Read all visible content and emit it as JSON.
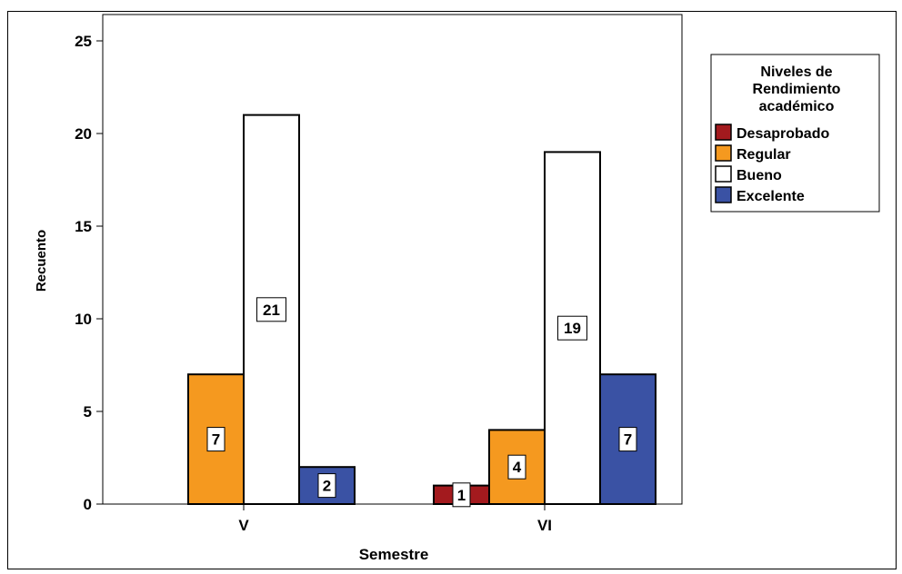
{
  "chart_data": {
    "type": "bar",
    "xlabel": "Semestre",
    "ylabel": "Recuento",
    "categories": [
      "V",
      "VI"
    ],
    "ylim": [
      0,
      26
    ],
    "yticks": [
      0,
      5,
      10,
      15,
      20,
      25
    ],
    "legend": {
      "title": "Niveles de Rendimiento académico",
      "title_lines": [
        "Niveles de",
        "Rendimiento",
        "académico"
      ],
      "placement": "right"
    },
    "series": [
      {
        "name": "Desaprobado",
        "color": "#a31a1e",
        "values": [
          0,
          1
        ]
      },
      {
        "name": "Regular",
        "color": "#f5991f",
        "values": [
          7,
          4
        ]
      },
      {
        "name": "Bueno",
        "color": "#ffffff",
        "values": [
          21,
          19
        ]
      },
      {
        "name": "Excelente",
        "color": "#3a52a4",
        "values": [
          2,
          7
        ]
      }
    ]
  }
}
